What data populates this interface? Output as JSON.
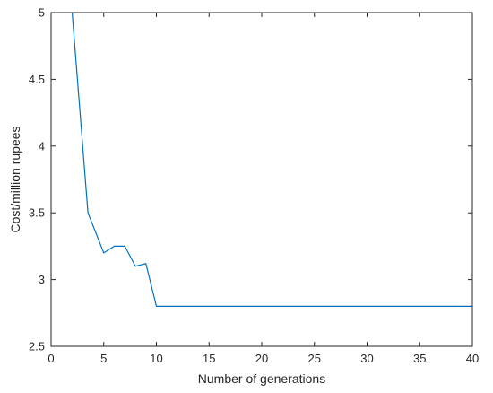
{
  "chart_data": {
    "type": "line",
    "title": "",
    "xlabel": "Number of generations",
    "ylabel": "Cost/million rupees",
    "xlim": [
      0,
      40
    ],
    "ylim": [
      2.5,
      5
    ],
    "xticks": [
      0,
      5,
      10,
      15,
      20,
      25,
      30,
      35,
      40
    ],
    "yticks": [
      2.5,
      3,
      3.5,
      4,
      4.5,
      5
    ],
    "xtick_labels": [
      "0",
      "5",
      "10",
      "15",
      "20",
      "25",
      "30",
      "35",
      "40"
    ],
    "ytick_labels": [
      "2.5",
      "3",
      "3.5",
      "4",
      "4.5",
      "5"
    ],
    "grid": false,
    "series": [
      {
        "color": "#0072BD",
        "x": [
          2,
          3.5,
          5,
          6,
          7,
          8,
          9,
          10,
          40
        ],
        "y": [
          5.0,
          3.5,
          3.2,
          3.25,
          3.25,
          3.1,
          3.12,
          2.8,
          2.8
        ]
      }
    ]
  }
}
